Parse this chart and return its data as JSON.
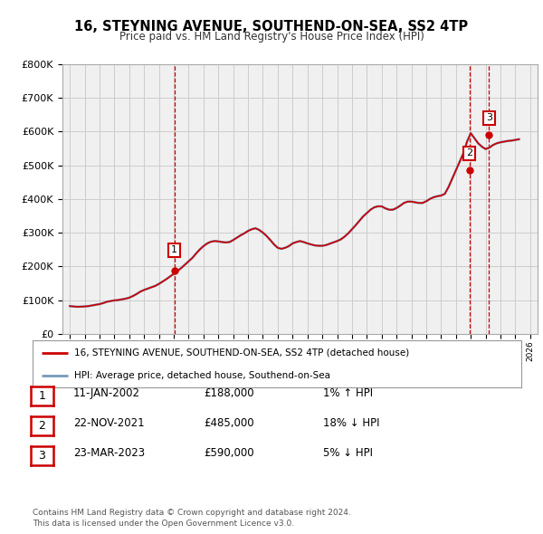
{
  "title": "16, STEYNING AVENUE, SOUTHEND-ON-SEA, SS2 4TP",
  "subtitle": "Price paid vs. HM Land Registry's House Price Index (HPI)",
  "ylim": [
    0,
    800000
  ],
  "yticks": [
    0,
    100000,
    200000,
    300000,
    400000,
    500000,
    600000,
    700000,
    800000
  ],
  "ytick_labels": [
    "£0",
    "£100K",
    "£200K",
    "£300K",
    "£400K",
    "£500K",
    "£600K",
    "£700K",
    "£800K"
  ],
  "hpi_color": "#7799bb",
  "price_color": "#cc0000",
  "marker_color": "#cc0000",
  "grid_color": "#cccccc",
  "bg_color": "#f0f0f0",
  "transactions": [
    {
      "date_num": 2002.03,
      "price": 188000,
      "label": "1"
    },
    {
      "date_num": 2021.9,
      "price": 485000,
      "label": "2"
    },
    {
      "date_num": 2023.23,
      "price": 590000,
      "label": "3"
    }
  ],
  "legend_line1": "16, STEYNING AVENUE, SOUTHEND-ON-SEA, SS2 4TP (detached house)",
  "legend_line2": "HPI: Average price, detached house, Southend-on-Sea",
  "table_rows": [
    {
      "num": "1",
      "date": "11-JAN-2002",
      "price": "£188,000",
      "hpi": "1% ↑ HPI"
    },
    {
      "num": "2",
      "date": "22-NOV-2021",
      "price": "£485,000",
      "hpi": "18% ↓ HPI"
    },
    {
      "num": "3",
      "date": "23-MAR-2023",
      "price": "£590,000",
      "hpi": "5% ↓ HPI"
    }
  ],
  "footer": "Contains HM Land Registry data © Crown copyright and database right 2024.\nThis data is licensed under the Open Government Licence v3.0.",
  "hpi_data_x": [
    1995.0,
    1995.25,
    1995.5,
    1995.75,
    1996.0,
    1996.25,
    1996.5,
    1996.75,
    1997.0,
    1997.25,
    1997.5,
    1997.75,
    1998.0,
    1998.25,
    1998.5,
    1998.75,
    1999.0,
    1999.25,
    1999.5,
    1999.75,
    2000.0,
    2000.25,
    2000.5,
    2000.75,
    2001.0,
    2001.25,
    2001.5,
    2001.75,
    2002.0,
    2002.25,
    2002.5,
    2002.75,
    2003.0,
    2003.25,
    2003.5,
    2003.75,
    2004.0,
    2004.25,
    2004.5,
    2004.75,
    2005.0,
    2005.25,
    2005.5,
    2005.75,
    2006.0,
    2006.25,
    2006.5,
    2006.75,
    2007.0,
    2007.25,
    2007.5,
    2007.75,
    2008.0,
    2008.25,
    2008.5,
    2008.75,
    2009.0,
    2009.25,
    2009.5,
    2009.75,
    2010.0,
    2010.25,
    2010.5,
    2010.75,
    2011.0,
    2011.25,
    2011.5,
    2011.75,
    2012.0,
    2012.25,
    2012.5,
    2012.75,
    2013.0,
    2013.25,
    2013.5,
    2013.75,
    2014.0,
    2014.25,
    2014.5,
    2014.75,
    2015.0,
    2015.25,
    2015.5,
    2015.75,
    2016.0,
    2016.25,
    2016.5,
    2016.75,
    2017.0,
    2017.25,
    2017.5,
    2017.75,
    2018.0,
    2018.25,
    2018.5,
    2018.75,
    2019.0,
    2019.25,
    2019.5,
    2019.75,
    2020.0,
    2020.25,
    2020.5,
    2020.75,
    2021.0,
    2021.25,
    2021.5,
    2021.75,
    2022.0,
    2022.25,
    2022.5,
    2022.75,
    2023.0,
    2023.25,
    2023.5,
    2023.75,
    2024.0,
    2024.25,
    2024.5,
    2024.75,
    2025.0,
    2025.25
  ],
  "hpi_data_y": [
    82000,
    81000,
    80000,
    80500,
    81000,
    82000,
    84000,
    86000,
    88000,
    91000,
    95000,
    97000,
    99000,
    100000,
    102000,
    104000,
    107000,
    112000,
    118000,
    125000,
    130000,
    134000,
    138000,
    142000,
    148000,
    155000,
    162000,
    170000,
    178000,
    186000,
    195000,
    205000,
    215000,
    225000,
    238000,
    250000,
    260000,
    268000,
    273000,
    275000,
    274000,
    272000,
    271000,
    272000,
    278000,
    285000,
    292000,
    298000,
    305000,
    310000,
    313000,
    308000,
    300000,
    290000,
    278000,
    265000,
    255000,
    252000,
    255000,
    260000,
    268000,
    272000,
    275000,
    272000,
    268000,
    265000,
    262000,
    261000,
    261000,
    263000,
    267000,
    271000,
    275000,
    280000,
    288000,
    298000,
    310000,
    322000,
    335000,
    348000,
    358000,
    368000,
    375000,
    378000,
    378000,
    372000,
    368000,
    368000,
    373000,
    380000,
    388000,
    392000,
    392000,
    390000,
    388000,
    388000,
    393000,
    400000,
    405000,
    408000,
    410000,
    415000,
    435000,
    460000,
    485000,
    510000,
    535000,
    570000,
    595000,
    580000,
    565000,
    555000,
    548000,
    552000,
    560000,
    565000,
    568000,
    570000,
    572000,
    573000,
    575000,
    577000
  ]
}
